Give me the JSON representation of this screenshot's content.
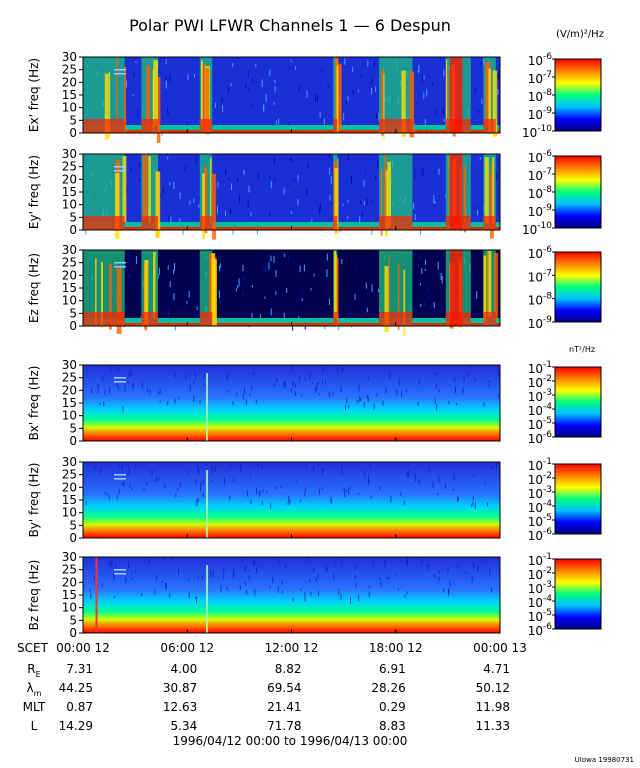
{
  "title": "Polar PWI LFWR Channels 1 — 6 Despun",
  "e_units": "(V/m)²/Hz",
  "b_units": "nT²/Hz",
  "credit": "UIowa 19980731",
  "date_range": "1996/04/12 00:00 to 1996/04/13 00:00",
  "colors": {
    "cmap": [
      "#000080",
      "#0000ff",
      "#00c0ff",
      "#00ff80",
      "#ffff00",
      "#ff8000",
      "#ff0000"
    ]
  },
  "chart_data": [
    {
      "type": "heatmap",
      "ylabel": "Ex' freq (Hz)",
      "ylim": [
        0,
        30
      ],
      "yticks": [
        "0",
        "5",
        "10",
        "15",
        "20",
        "25",
        "30"
      ],
      "cbar_ticks": [
        {
          "base": "10",
          "exp": "-6"
        },
        {
          "base": "10",
          "exp": "-7"
        },
        {
          "base": "10",
          "exp": "-8"
        },
        {
          "base": "10",
          "exp": "-9"
        },
        {
          "base": "10",
          "exp": "-10"
        }
      ]
    },
    {
      "type": "heatmap",
      "ylabel": "Ey' freq (Hz)",
      "ylim": [
        0,
        30
      ],
      "yticks": [
        "0",
        "5",
        "10",
        "15",
        "20",
        "25",
        "30"
      ],
      "cbar_ticks": [
        {
          "base": "10",
          "exp": "-6"
        },
        {
          "base": "10",
          "exp": "-7"
        },
        {
          "base": "10",
          "exp": "-8"
        },
        {
          "base": "10",
          "exp": "-9"
        },
        {
          "base": "10",
          "exp": "-10"
        }
      ]
    },
    {
      "type": "heatmap",
      "ylabel": "Ez freq (Hz)",
      "ylim": [
        0,
        30
      ],
      "yticks": [
        "0",
        "5",
        "10",
        "15",
        "20",
        "25",
        "30"
      ],
      "cbar_ticks": [
        {
          "base": "10",
          "exp": "-6"
        },
        {
          "base": "10",
          "exp": "-7"
        },
        {
          "base": "10",
          "exp": "-8"
        },
        {
          "base": "10",
          "exp": "-9"
        }
      ]
    },
    {
      "type": "heatmap",
      "ylabel": "Bx' freq (Hz)",
      "ylim": [
        0,
        30
      ],
      "yticks": [
        "0",
        "5",
        "10",
        "15",
        "20",
        "25",
        "30"
      ],
      "cbar_ticks": [
        {
          "base": "10",
          "exp": "-1"
        },
        {
          "base": "10",
          "exp": "-2"
        },
        {
          "base": "10",
          "exp": "-3"
        },
        {
          "base": "10",
          "exp": "-4"
        },
        {
          "base": "10",
          "exp": "-5"
        },
        {
          "base": "10",
          "exp": "-6"
        }
      ]
    },
    {
      "type": "heatmap",
      "ylabel": "By' freq (Hz)",
      "ylim": [
        0,
        30
      ],
      "yticks": [
        "0",
        "5",
        "10",
        "15",
        "20",
        "25",
        "30"
      ],
      "cbar_ticks": [
        {
          "base": "10",
          "exp": "-1"
        },
        {
          "base": "10",
          "exp": "-2"
        },
        {
          "base": "10",
          "exp": "-3"
        },
        {
          "base": "10",
          "exp": "-4"
        },
        {
          "base": "10",
          "exp": "-5"
        },
        {
          "base": "10",
          "exp": "-6"
        }
      ]
    },
    {
      "type": "heatmap",
      "ylabel": "Bz freq (Hz)",
      "ylim": [
        0,
        30
      ],
      "yticks": [
        "0",
        "5",
        "10",
        "15",
        "20",
        "25",
        "30"
      ],
      "cbar_ticks": [
        {
          "base": "10",
          "exp": "-1"
        },
        {
          "base": "10",
          "exp": "-2"
        },
        {
          "base": "10",
          "exp": "-3"
        },
        {
          "base": "10",
          "exp": "-4"
        },
        {
          "base": "10",
          "exp": "-5"
        },
        {
          "base": "10",
          "exp": "-6"
        }
      ]
    }
  ],
  "xaxis": {
    "label": "SCET",
    "ticks": [
      "00:00  12",
      "06:00  12",
      "12:00  12",
      "18:00  12",
      "00:00  13"
    ]
  },
  "ephemeris": [
    {
      "label": "R",
      "sub": "E",
      "values": [
        "7.31",
        "4.00",
        "8.82",
        "6.91",
        "4.71"
      ]
    },
    {
      "label": "λ",
      "sub": "m",
      "values": [
        "44.25",
        "30.87",
        "69.54",
        "28.26",
        "50.12"
      ]
    },
    {
      "label": "MLT",
      "sub": "",
      "values": [
        "0.87",
        "12.63",
        "21.41",
        "0.29",
        "11.98"
      ]
    },
    {
      "label": "L",
      "sub": "",
      "values": [
        "14.29",
        "5.34",
        "71.78",
        "8.83",
        "11.33"
      ]
    }
  ]
}
